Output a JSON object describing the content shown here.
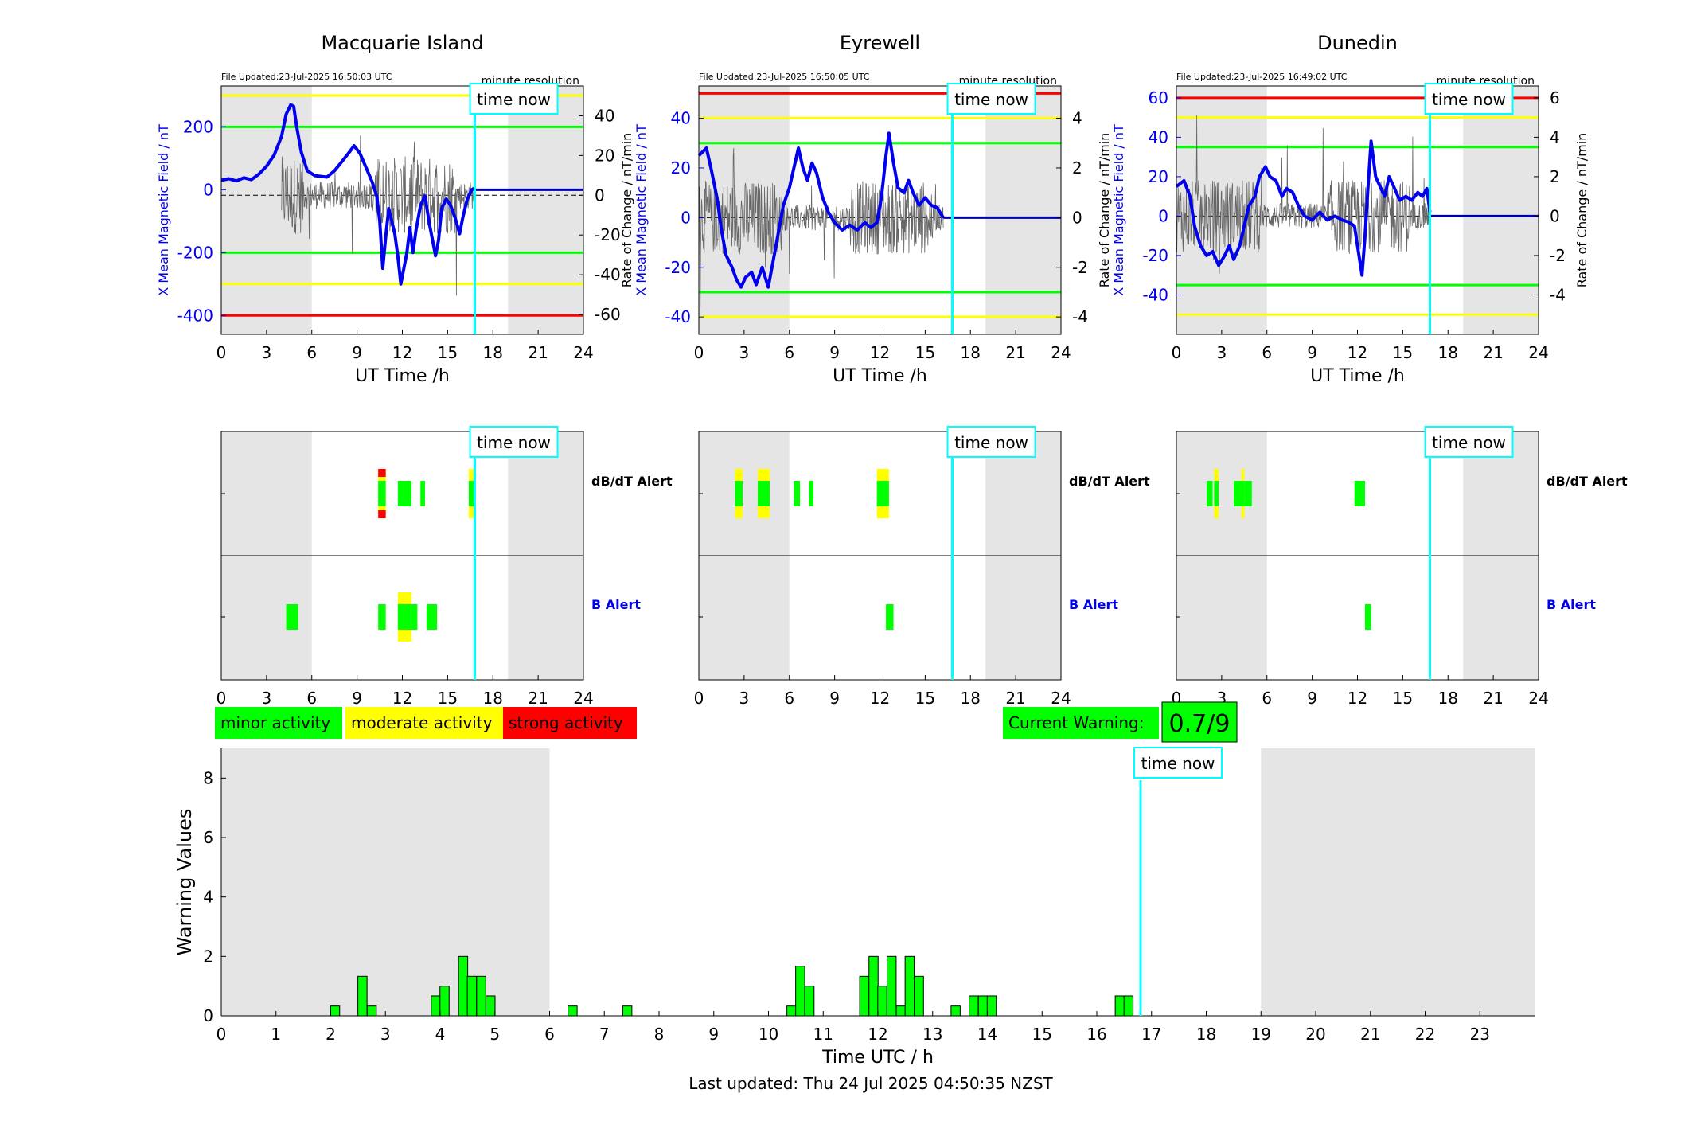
{
  "stations": [
    {
      "name": "Macquarie Island",
      "updated": "File Updated:23-Jul-2025 16:50:03 UTC",
      "resolution": "minute resolution",
      "ylabel_left": "X Mean Magnetic Field / nT",
      "ylabel_right": "Rate of Change / nT/min",
      "xlabel": "UT Time /h",
      "ylim_left": [
        -460,
        330
      ],
      "ylim_right": [
        -70,
        55
      ],
      "yticks_left": [
        -400,
        -200,
        0,
        200
      ],
      "yticks_right": [
        -60,
        -40,
        -20,
        0,
        20,
        40
      ],
      "thresholds": {
        "red": [
          -400
        ],
        "yellow": [
          300,
          -300
        ],
        "green": [
          200,
          -200
        ]
      },
      "field_trace": [
        [
          0,
          30
        ],
        [
          0.5,
          35
        ],
        [
          1,
          28
        ],
        [
          1.5,
          38
        ],
        [
          2,
          32
        ],
        [
          2.5,
          50
        ],
        [
          3,
          75
        ],
        [
          3.5,
          110
        ],
        [
          4,
          170
        ],
        [
          4.3,
          240
        ],
        [
          4.6,
          270
        ],
        [
          4.8,
          265
        ],
        [
          5,
          200
        ],
        [
          5.3,
          120
        ],
        [
          5.7,
          60
        ],
        [
          6.2,
          45
        ],
        [
          7,
          40
        ],
        [
          7.5,
          60
        ],
        [
          8,
          90
        ],
        [
          8.5,
          120
        ],
        [
          8.8,
          140
        ],
        [
          9.2,
          115
        ],
        [
          9.6,
          70
        ],
        [
          10,
          25
        ],
        [
          10.3,
          -20
        ],
        [
          10.5,
          -100
        ],
        [
          10.7,
          -250
        ],
        [
          10.9,
          -150
        ],
        [
          11.1,
          -60
        ],
        [
          11.3,
          -100
        ],
        [
          11.5,
          -140
        ],
        [
          11.7,
          -210
        ],
        [
          11.9,
          -300
        ],
        [
          12.1,
          -250
        ],
        [
          12.3,
          -200
        ],
        [
          12.5,
          -120
        ],
        [
          12.7,
          -200
        ],
        [
          12.9,
          -130
        ],
        [
          13.2,
          -50
        ],
        [
          13.5,
          -20
        ],
        [
          13.8,
          -110
        ],
        [
          14,
          -160
        ],
        [
          14.2,
          -210
        ],
        [
          14.4,
          -160
        ],
        [
          14.6,
          -60
        ],
        [
          14.9,
          -30
        ],
        [
          15.2,
          -50
        ],
        [
          15.5,
          -90
        ],
        [
          15.8,
          -140
        ],
        [
          16,
          -90
        ],
        [
          16.3,
          -30
        ],
        [
          16.6,
          0
        ],
        [
          16.8,
          5
        ]
      ],
      "field_flat_after": 16.8,
      "activity_band": [
        4,
        16.8
      ],
      "shade": [
        [
          0,
          6
        ],
        [
          19,
          24
        ]
      ],
      "alerts": {
        "dbdt": [
          {
            "t": [
              10.4,
              10.9
            ],
            "level": "strong"
          },
          {
            "t": [
              11.7,
              12.6
            ],
            "level": "minor"
          },
          {
            "t": [
              13.2,
              13.5
            ],
            "level": "minor"
          },
          {
            "t": [
              16.4,
              16.8
            ],
            "level": "moderate"
          }
        ],
        "b": [
          {
            "t": [
              4.3,
              5.1
            ],
            "level": "minor"
          },
          {
            "t": [
              10.4,
              10.9
            ],
            "level": "minor"
          },
          {
            "t": [
              11.7,
              12.6
            ],
            "level": "moderate"
          },
          {
            "t": [
              12.6,
              13
            ],
            "level": "minor"
          },
          {
            "t": [
              13.6,
              14.3
            ],
            "level": "minor"
          }
        ]
      }
    },
    {
      "name": "Eyrewell",
      "updated": "File Updated:23-Jul-2025 16:50:05 UTC",
      "resolution": "minute resolution",
      "ylabel_left": "X Mean Magnetic Field / nT",
      "ylabel_right": "Rate of Change / nT/min",
      "xlabel": "UT Time /h",
      "ylim_left": [
        -47,
        53
      ],
      "ylim_right": [
        -4.7,
        5.3
      ],
      "yticks_left": [
        -40,
        -20,
        0,
        20,
        40
      ],
      "yticks_right": [
        -4,
        -2,
        0,
        2,
        4
      ],
      "thresholds": {
        "red": [
          50
        ],
        "yellow": [
          40,
          -40
        ],
        "green": [
          30,
          -30
        ]
      },
      "field_trace": [
        [
          0,
          25
        ],
        [
          0.5,
          28
        ],
        [
          0.8,
          20
        ],
        [
          1.2,
          8
        ],
        [
          1.5,
          -5
        ],
        [
          1.8,
          -15
        ],
        [
          2.2,
          -20
        ],
        [
          2.5,
          -25
        ],
        [
          2.8,
          -28
        ],
        [
          3.1,
          -24
        ],
        [
          3.5,
          -22
        ],
        [
          3.8,
          -27
        ],
        [
          4.2,
          -20
        ],
        [
          4.6,
          -28
        ],
        [
          5,
          -15
        ],
        [
          5.3,
          -5
        ],
        [
          5.6,
          5
        ],
        [
          6,
          12
        ],
        [
          6.3,
          20
        ],
        [
          6.6,
          28
        ],
        [
          6.9,
          20
        ],
        [
          7.2,
          15
        ],
        [
          7.5,
          22
        ],
        [
          7.8,
          18
        ],
        [
          8.2,
          8
        ],
        [
          8.6,
          2
        ],
        [
          9,
          -2
        ],
        [
          9.5,
          -5
        ],
        [
          10,
          -3
        ],
        [
          10.5,
          -5
        ],
        [
          11,
          -2
        ],
        [
          11.4,
          -4
        ],
        [
          11.8,
          -2
        ],
        [
          12.1,
          8
        ],
        [
          12.4,
          25
        ],
        [
          12.6,
          34
        ],
        [
          12.9,
          22
        ],
        [
          13.2,
          12
        ],
        [
          13.6,
          10
        ],
        [
          13.9,
          15
        ],
        [
          14.2,
          10
        ],
        [
          14.6,
          5
        ],
        [
          15,
          8
        ],
        [
          15.4,
          5
        ],
        [
          15.8,
          4
        ],
        [
          16.2,
          0
        ]
      ],
      "field_flat_after": 16.2,
      "activity_band": [
        0,
        16.2
      ],
      "shade": [
        [
          0,
          6
        ],
        [
          19,
          24
        ]
      ],
      "alerts": {
        "dbdt": [
          {
            "t": [
              2.4,
              2.9
            ],
            "level": "moderate"
          },
          {
            "t": [
              3.9,
              4.7
            ],
            "level": "moderate"
          },
          {
            "t": [
              6.3,
              6.7
            ],
            "level": "minor"
          },
          {
            "t": [
              7.3,
              7.6
            ],
            "level": "minor"
          },
          {
            "t": [
              11.8,
              12.6
            ],
            "level": "moderate"
          }
        ],
        "b": [
          {
            "t": [
              12.4,
              12.9
            ],
            "level": "minor"
          }
        ]
      }
    },
    {
      "name": "Dunedin",
      "updated": "File Updated:23-Jul-2025 16:49:02 UTC",
      "resolution": "minute resolution",
      "ylabel_left": "X Mean Magnetic Field / nT",
      "ylabel_right": "Rate of Change / nT/min",
      "xlabel": "UT Time /h",
      "ylim_left": [
        -60,
        66
      ],
      "ylim_right": [
        -6,
        6.6
      ],
      "yticks_left": [
        -40,
        -20,
        0,
        20,
        40,
        60
      ],
      "yticks_right": [
        -4,
        -2,
        0,
        2,
        4,
        6
      ],
      "thresholds": {
        "red": [
          60
        ],
        "yellow": [
          50,
          -50
        ],
        "green": [
          35,
          -35
        ]
      },
      "field_trace": [
        [
          0,
          15
        ],
        [
          0.5,
          18
        ],
        [
          0.9,
          10
        ],
        [
          1.2,
          -5
        ],
        [
          1.6,
          -15
        ],
        [
          2,
          -20
        ],
        [
          2.4,
          -18
        ],
        [
          2.8,
          -25
        ],
        [
          3.2,
          -20
        ],
        [
          3.5,
          -15
        ],
        [
          3.8,
          -22
        ],
        [
          4.2,
          -15
        ],
        [
          4.5,
          -5
        ],
        [
          4.8,
          5
        ],
        [
          5.2,
          10
        ],
        [
          5.5,
          20
        ],
        [
          5.9,
          25
        ],
        [
          6.2,
          20
        ],
        [
          6.6,
          18
        ],
        [
          7,
          10
        ],
        [
          7.3,
          14
        ],
        [
          7.7,
          12
        ],
        [
          8.1,
          5
        ],
        [
          8.5,
          0
        ],
        [
          9,
          -2
        ],
        [
          9.5,
          2
        ],
        [
          10,
          -2
        ],
        [
          10.5,
          0
        ],
        [
          11,
          -2
        ],
        [
          11.4,
          -3
        ],
        [
          11.8,
          -5
        ],
        [
          12.1,
          -20
        ],
        [
          12.3,
          -30
        ],
        [
          12.5,
          -10
        ],
        [
          12.7,
          15
        ],
        [
          12.9,
          38
        ],
        [
          13.2,
          20
        ],
        [
          13.5,
          15
        ],
        [
          13.8,
          10
        ],
        [
          14.1,
          20
        ],
        [
          14.4,
          15
        ],
        [
          14.8,
          8
        ],
        [
          15.2,
          10
        ],
        [
          15.6,
          8
        ],
        [
          16,
          12
        ],
        [
          16.3,
          10
        ],
        [
          16.6,
          14
        ],
        [
          16.8,
          2
        ]
      ],
      "field_flat_after": 16.8,
      "activity_band": [
        0,
        16.8
      ],
      "shade": [
        [
          0,
          6
        ],
        [
          19,
          24
        ]
      ],
      "alerts": {
        "dbdt": [
          {
            "t": [
              2,
              2.4
            ],
            "level": "minor"
          },
          {
            "t": [
              2.5,
              2.8
            ],
            "level": "moderate"
          },
          {
            "t": [
              3.8,
              5
            ],
            "level": "minor"
          },
          {
            "t": [
              4.3,
              4.5
            ],
            "level": "moderate"
          },
          {
            "t": [
              11.8,
              12.5
            ],
            "level": "minor"
          }
        ],
        "b": [
          {
            "t": [
              12.5,
              12.9
            ],
            "level": "minor"
          }
        ]
      }
    }
  ],
  "time_now_hour": 16.8,
  "time_now_label": "time now",
  "alert_rows": {
    "dbdt_label": "dB/dT Alert",
    "b_label": "B Alert"
  },
  "legend": {
    "minor": {
      "label": "minor activity",
      "color": "#00ff00"
    },
    "moderate": {
      "label": "moderate activity",
      "color": "#ffff00"
    },
    "strong": {
      "label": "strong activity",
      "color": "#ff0000"
    }
  },
  "current_warning": {
    "label": "Current Warning:",
    "value": "0.7/9",
    "color": "#00ff00"
  },
  "chart_data": {
    "type": "bar",
    "xlabel": "Time UTC / h",
    "ylabel": "Warning Values",
    "xlim": [
      0,
      24
    ],
    "ylim": [
      0,
      9
    ],
    "xticks": [
      0,
      1,
      2,
      3,
      4,
      5,
      6,
      7,
      8,
      9,
      10,
      11,
      12,
      13,
      14,
      15,
      16,
      17,
      18,
      19,
      20,
      21,
      22,
      23
    ],
    "yticks": [
      0,
      2,
      4,
      6,
      8
    ],
    "shaded_hours": [
      [
        0,
        6
      ],
      [
        19,
        24
      ]
    ],
    "bars": [
      {
        "x": 2.08,
        "value": 0.33
      },
      {
        "x": 2.58,
        "value": 1.33
      },
      {
        "x": 2.75,
        "value": 0.33
      },
      {
        "x": 3.92,
        "value": 0.67
      },
      {
        "x": 4.08,
        "value": 1.0
      },
      {
        "x": 4.42,
        "value": 2.0
      },
      {
        "x": 4.58,
        "value": 1.33
      },
      {
        "x": 4.75,
        "value": 1.33
      },
      {
        "x": 4.92,
        "value": 0.67
      },
      {
        "x": 6.42,
        "value": 0.33
      },
      {
        "x": 7.42,
        "value": 0.33
      },
      {
        "x": 10.42,
        "value": 0.33
      },
      {
        "x": 10.58,
        "value": 1.67
      },
      {
        "x": 10.75,
        "value": 1.0
      },
      {
        "x": 11.75,
        "value": 1.33
      },
      {
        "x": 11.92,
        "value": 2.0
      },
      {
        "x": 12.08,
        "value": 1.0
      },
      {
        "x": 12.25,
        "value": 2.0
      },
      {
        "x": 12.42,
        "value": 0.33
      },
      {
        "x": 12.58,
        "value": 2.0
      },
      {
        "x": 12.75,
        "value": 1.33
      },
      {
        "x": 13.42,
        "value": 0.33
      },
      {
        "x": 13.75,
        "value": 0.67
      },
      {
        "x": 13.92,
        "value": 0.67
      },
      {
        "x": 14.08,
        "value": 0.67
      },
      {
        "x": 16.42,
        "value": 0.67
      },
      {
        "x": 16.58,
        "value": 0.67
      }
    ],
    "time_now": 16.8
  },
  "last_updated": "Last updated: Thu 24 Jul 2025 04:50:35 NZST"
}
